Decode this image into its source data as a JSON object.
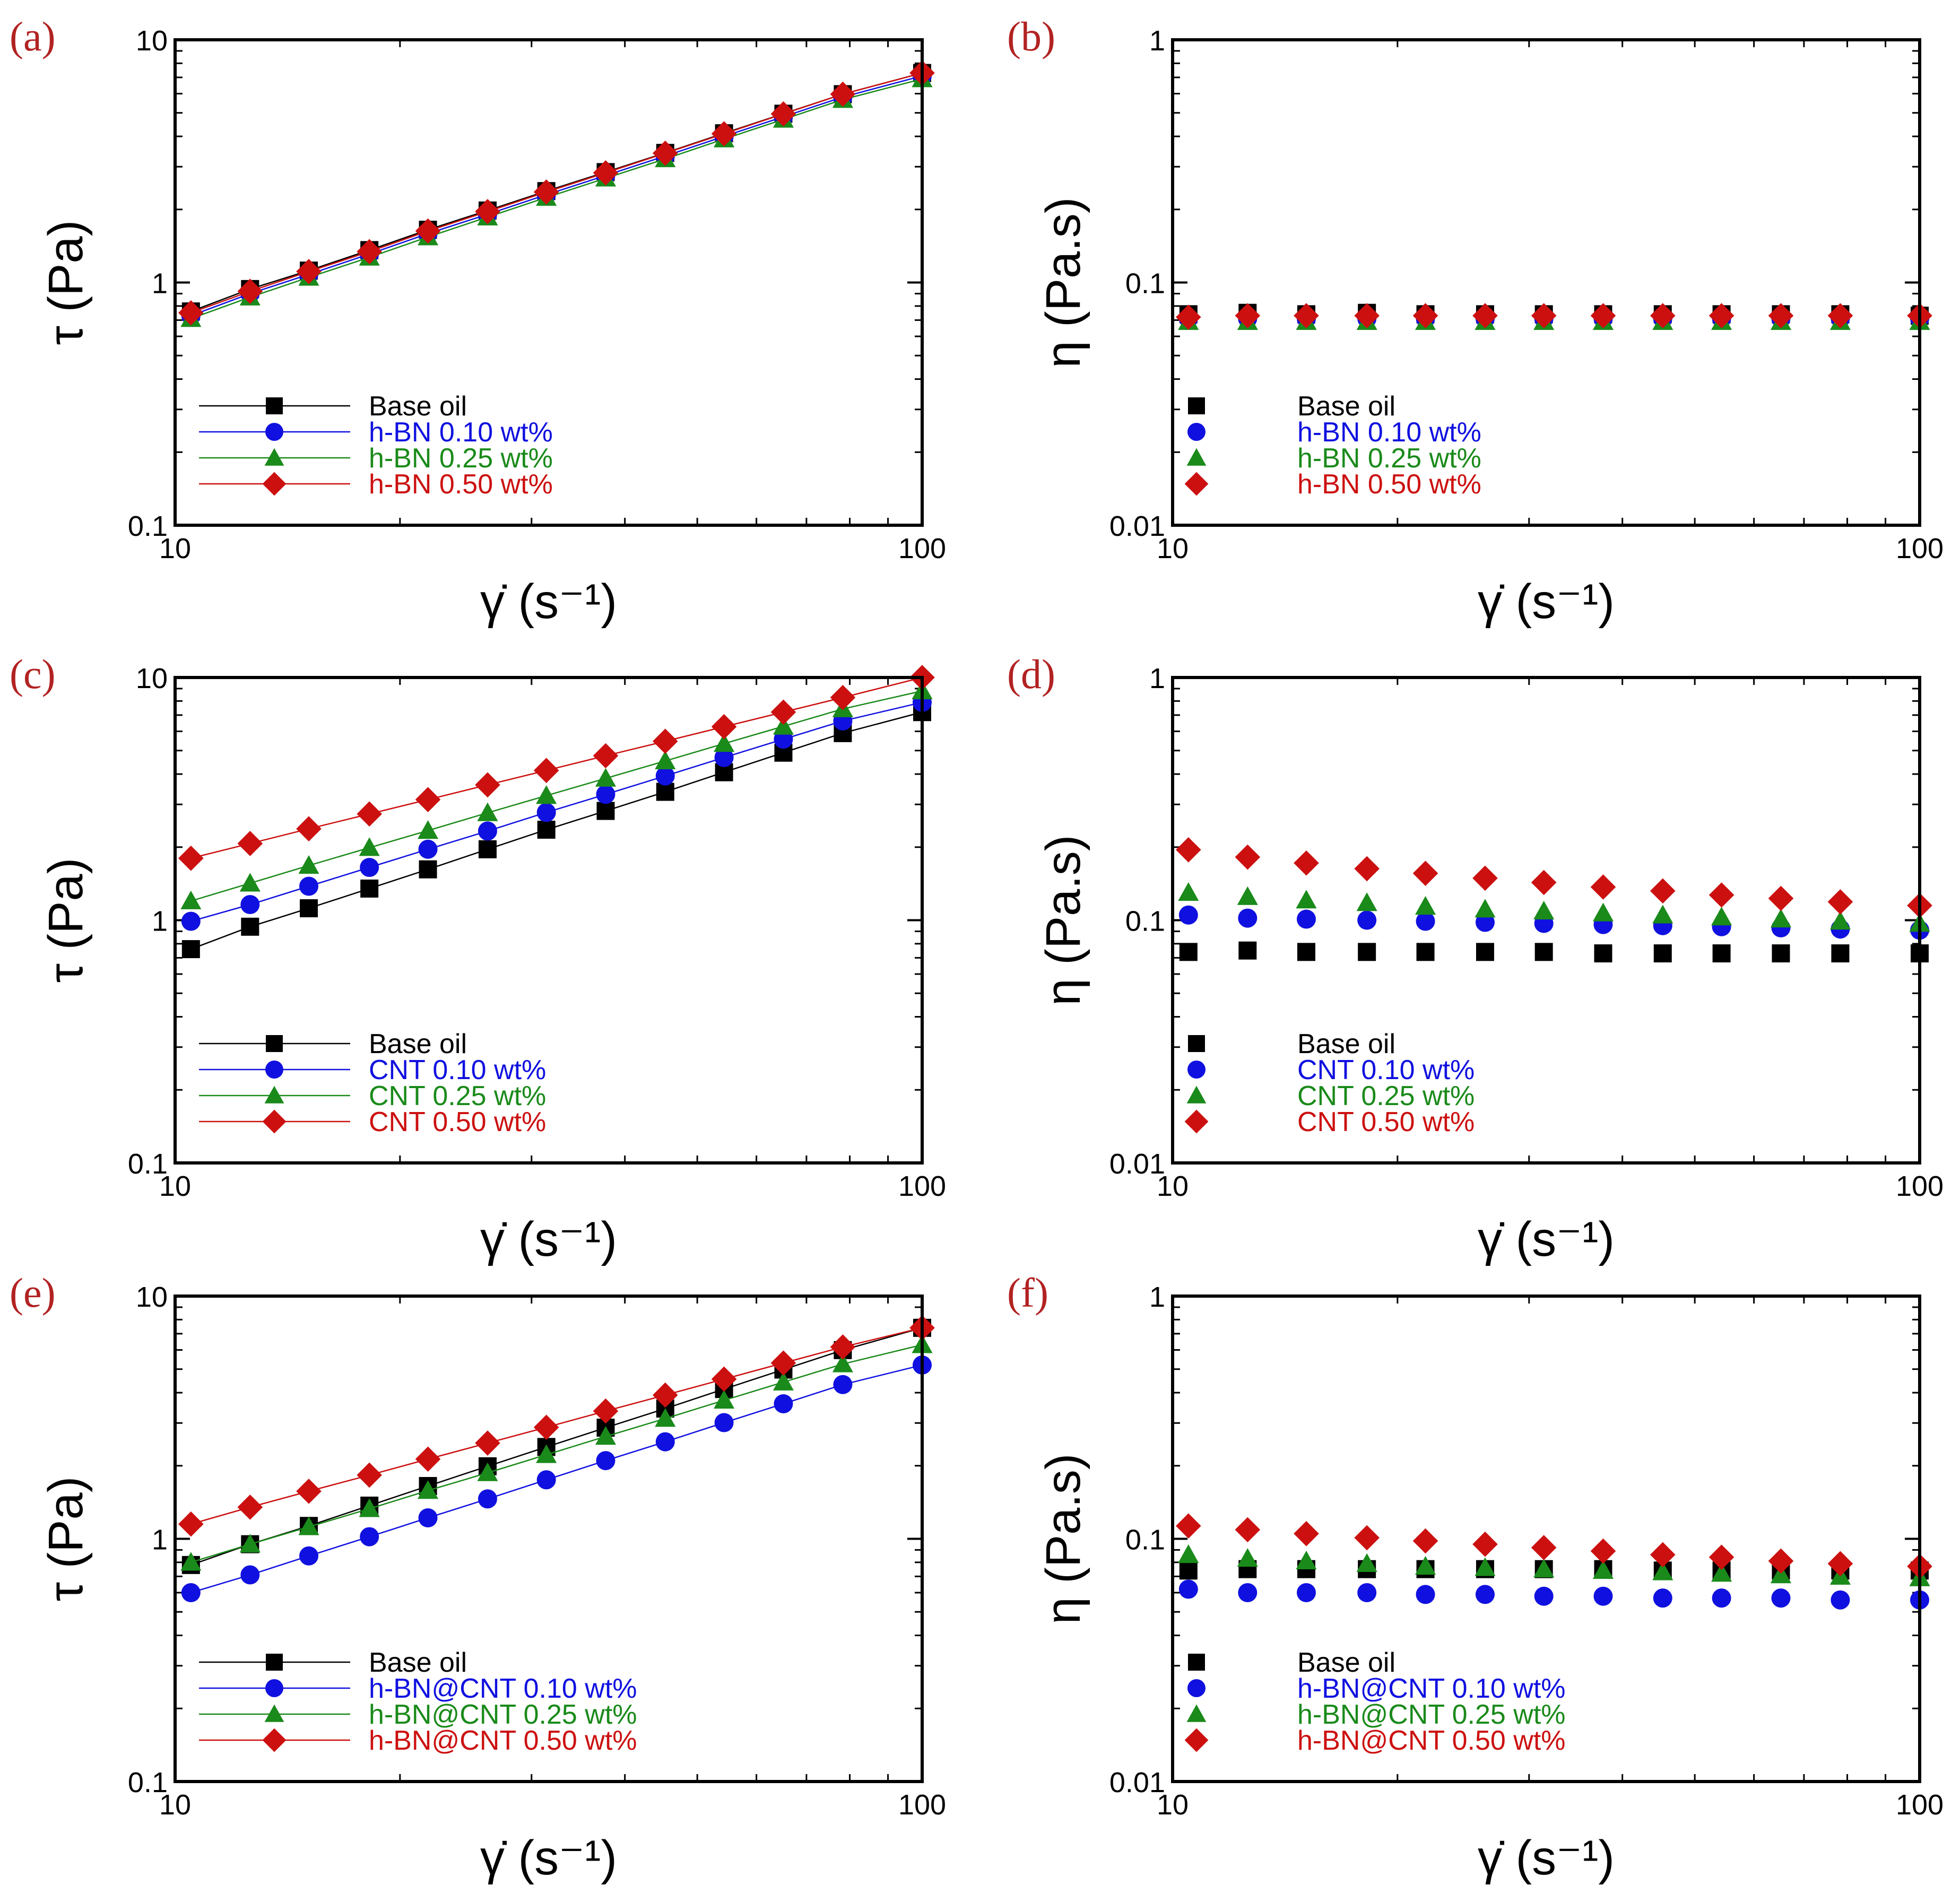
{
  "figure": {
    "background": "#ffffff",
    "panel_label_color": "#b22222"
  },
  "chart_data": [
    {
      "id": "a",
      "panel_label": "(a)",
      "type": "line",
      "xlabel": "γ̇ (s⁻¹)",
      "ylabel": "τ (Pa)",
      "xscale": "log",
      "yscale": "log",
      "xlim": [
        10,
        100
      ],
      "ylim": [
        0.1,
        10
      ],
      "xticks": [
        {
          "value": 10,
          "label": "10"
        },
        {
          "value": 100,
          "label": "100"
        }
      ],
      "yticks": [
        {
          "value": 0.1,
          "label": "0.1"
        },
        {
          "value": 1,
          "label": "1"
        },
        {
          "value": 10,
          "label": "10"
        }
      ],
      "legend_position": "bottom-left",
      "show_lines": true,
      "x": [
        10.5,
        12.6,
        15.1,
        18.2,
        21.8,
        26.2,
        31.4,
        37.7,
        45.3,
        54.3,
        65.2,
        78.3,
        100
      ],
      "series": [
        {
          "name": "Base oil",
          "color": "#000000",
          "marker": "square",
          "values": [
            0.76,
            0.94,
            1.12,
            1.36,
            1.65,
            1.98,
            2.38,
            2.85,
            3.42,
            4.12,
            4.96,
            5.97,
            7.3
          ]
        },
        {
          "name": "h-BN 0.10 wt%",
          "color": "#1010e0",
          "marker": "circle",
          "values": [
            0.73,
            0.9,
            1.08,
            1.31,
            1.59,
            1.91,
            2.3,
            2.76,
            3.32,
            4.0,
            4.82,
            5.81,
            7.1
          ]
        },
        {
          "name": "h-BN 0.25 wt%",
          "color": "#1a8a1a",
          "marker": "triangle",
          "values": [
            0.71,
            0.87,
            1.05,
            1.27,
            1.54,
            1.86,
            2.24,
            2.69,
            3.23,
            3.9,
            4.7,
            5.67,
            6.9
          ]
        },
        {
          "name": "h-BN 0.50 wt%",
          "color": "#cc1010",
          "marker": "diamond",
          "values": [
            0.75,
            0.92,
            1.11,
            1.34,
            1.63,
            1.96,
            2.36,
            2.83,
            3.41,
            4.1,
            4.95,
            5.97,
            7.3
          ]
        }
      ]
    },
    {
      "id": "b",
      "panel_label": "(b)",
      "type": "scatter",
      "xlabel": "γ̇ (s⁻¹)",
      "ylabel": "η (Pa.s)",
      "xscale": "log",
      "yscale": "log",
      "xlim": [
        10,
        100
      ],
      "ylim": [
        0.01,
        1
      ],
      "xticks": [
        {
          "value": 10,
          "label": "10"
        },
        {
          "value": 100,
          "label": "100"
        }
      ],
      "yticks": [
        {
          "value": 0.01,
          "label": "0.01"
        },
        {
          "value": 0.1,
          "label": "0.1"
        },
        {
          "value": 1,
          "label": "1"
        }
      ],
      "legend_position": "bottom-left",
      "show_lines": false,
      "x": [
        10.5,
        12.6,
        15.1,
        18.2,
        21.8,
        26.2,
        31.4,
        37.7,
        45.3,
        54.3,
        65.2,
        78.3,
        100
      ],
      "series": [
        {
          "name": "Base oil",
          "color": "#000000",
          "marker": "square",
          "values": [
            0.074,
            0.075,
            0.074,
            0.075,
            0.074,
            0.074,
            0.074,
            0.074,
            0.074,
            0.074,
            0.074,
            0.074,
            0.073
          ]
        },
        {
          "name": "h-BN 0.10 wt%",
          "color": "#1010e0",
          "marker": "circle",
          "values": [
            0.071,
            0.071,
            0.071,
            0.071,
            0.071,
            0.071,
            0.071,
            0.071,
            0.071,
            0.071,
            0.071,
            0.071,
            0.071
          ]
        },
        {
          "name": "h-BN 0.25 wt%",
          "color": "#1a8a1a",
          "marker": "triangle",
          "values": [
            0.069,
            0.069,
            0.069,
            0.069,
            0.069,
            0.069,
            0.069,
            0.069,
            0.069,
            0.069,
            0.069,
            0.069,
            0.069
          ]
        },
        {
          "name": "h-BN 0.50 wt%",
          "color": "#cc1010",
          "marker": "diamond",
          "values": [
            0.072,
            0.073,
            0.073,
            0.073,
            0.073,
            0.073,
            0.073,
            0.073,
            0.073,
            0.073,
            0.073,
            0.073,
            0.073
          ]
        }
      ]
    },
    {
      "id": "c",
      "panel_label": "(c)",
      "type": "line",
      "xlabel": "γ̇ (s⁻¹)",
      "ylabel": "τ (Pa)",
      "xscale": "log",
      "yscale": "log",
      "xlim": [
        10,
        100
      ],
      "ylim": [
        0.1,
        10
      ],
      "xticks": [
        {
          "value": 10,
          "label": "10"
        },
        {
          "value": 100,
          "label": "100"
        }
      ],
      "yticks": [
        {
          "value": 0.1,
          "label": "0.1"
        },
        {
          "value": 1,
          "label": "1"
        },
        {
          "value": 10,
          "label": "10"
        }
      ],
      "legend_position": "bottom-left",
      "show_lines": true,
      "x": [
        10.5,
        12.6,
        15.1,
        18.2,
        21.8,
        26.2,
        31.4,
        37.7,
        45.3,
        54.3,
        65.2,
        78.3,
        100
      ],
      "series": [
        {
          "name": "Base oil",
          "color": "#000000",
          "marker": "square",
          "values": [
            0.76,
            0.94,
            1.12,
            1.35,
            1.62,
            1.96,
            2.36,
            2.82,
            3.38,
            4.07,
            4.9,
            5.9,
            7.2
          ]
        },
        {
          "name": "CNT 0.10 wt%",
          "color": "#1010e0",
          "marker": "circle",
          "values": [
            0.99,
            1.16,
            1.38,
            1.65,
            1.96,
            2.33,
            2.78,
            3.3,
            3.93,
            4.68,
            5.57,
            6.62,
            7.9
          ]
        },
        {
          "name": "CNT 0.25 wt%",
          "color": "#1a8a1a",
          "marker": "triangle",
          "values": [
            1.2,
            1.42,
            1.68,
            1.99,
            2.34,
            2.77,
            3.26,
            3.84,
            4.53,
            5.34,
            6.29,
            7.42,
            8.8
          ]
        },
        {
          "name": "CNT 0.50 wt%",
          "color": "#cc1010",
          "marker": "diamond",
          "values": [
            1.8,
            2.07,
            2.38,
            2.74,
            3.14,
            3.61,
            4.14,
            4.76,
            5.46,
            6.27,
            7.2,
            8.27,
            10.0
          ]
        }
      ]
    },
    {
      "id": "d",
      "panel_label": "(d)",
      "type": "scatter",
      "xlabel": "γ̇ (s⁻¹)",
      "ylabel": "η (Pa.s)",
      "xscale": "log",
      "yscale": "log",
      "xlim": [
        10,
        100
      ],
      "ylim": [
        0.01,
        1
      ],
      "xticks": [
        {
          "value": 10,
          "label": "10"
        },
        {
          "value": 100,
          "label": "100"
        }
      ],
      "yticks": [
        {
          "value": 0.01,
          "label": "0.01"
        },
        {
          "value": 0.1,
          "label": "0.1"
        },
        {
          "value": 1,
          "label": "1"
        }
      ],
      "legend_position": "bottom-left",
      "show_lines": false,
      "x": [
        10.5,
        12.6,
        15.1,
        18.2,
        21.8,
        26.2,
        31.4,
        37.7,
        45.3,
        54.3,
        65.2,
        78.3,
        100
      ],
      "series": [
        {
          "name": "Base oil",
          "color": "#000000",
          "marker": "square",
          "values": [
            0.074,
            0.075,
            0.074,
            0.074,
            0.074,
            0.074,
            0.074,
            0.073,
            0.073,
            0.073,
            0.073,
            0.073,
            0.073
          ]
        },
        {
          "name": "CNT 0.10 wt%",
          "color": "#1010e0",
          "marker": "circle",
          "values": [
            0.105,
            0.102,
            0.101,
            0.1,
            0.099,
            0.098,
            0.097,
            0.096,
            0.095,
            0.094,
            0.093,
            0.092,
            0.091
          ]
        },
        {
          "name": "CNT 0.25 wt%",
          "color": "#1a8a1a",
          "marker": "triangle",
          "values": [
            0.13,
            0.125,
            0.121,
            0.118,
            0.114,
            0.111,
            0.109,
            0.107,
            0.105,
            0.103,
            0.101,
            0.099,
            0.097
          ]
        },
        {
          "name": "CNT 0.50 wt%",
          "color": "#cc1010",
          "marker": "diamond",
          "values": [
            0.195,
            0.182,
            0.172,
            0.163,
            0.156,
            0.149,
            0.143,
            0.137,
            0.132,
            0.127,
            0.123,
            0.119,
            0.115
          ]
        }
      ]
    },
    {
      "id": "e",
      "panel_label": "(e)",
      "type": "line",
      "xlabel": "γ̇ (s⁻¹)",
      "ylabel": "τ (Pa)",
      "xscale": "log",
      "yscale": "log",
      "xlim": [
        10,
        100
      ],
      "ylim": [
        0.1,
        10
      ],
      "xticks": [
        {
          "value": 10,
          "label": "10"
        },
        {
          "value": 100,
          "label": "100"
        }
      ],
      "yticks": [
        {
          "value": 0.1,
          "label": "0.1"
        },
        {
          "value": 1,
          "label": "1"
        },
        {
          "value": 10,
          "label": "10"
        }
      ],
      "legend_position": "bottom-left",
      "show_lines": true,
      "x": [
        10.5,
        12.6,
        15.1,
        18.2,
        21.8,
        26.2,
        31.4,
        37.7,
        45.3,
        54.3,
        65.2,
        78.3,
        100
      ],
      "series": [
        {
          "name": "Base oil",
          "color": "#000000",
          "marker": "square",
          "values": [
            0.78,
            0.95,
            1.13,
            1.37,
            1.65,
            1.99,
            2.39,
            2.87,
            3.44,
            4.14,
            4.98,
            5.99,
            7.4
          ]
        },
        {
          "name": "h-BN@CNT 0.10 wt%",
          "color": "#1010e0",
          "marker": "circle",
          "values": [
            0.6,
            0.71,
            0.85,
            1.02,
            1.22,
            1.46,
            1.75,
            2.1,
            2.51,
            3.01,
            3.6,
            4.32,
            5.2
          ]
        },
        {
          "name": "h-BN@CNT 0.25 wt%",
          "color": "#1a8a1a",
          "marker": "triangle",
          "values": [
            0.8,
            0.95,
            1.12,
            1.33,
            1.58,
            1.87,
            2.22,
            2.64,
            3.13,
            3.72,
            4.42,
            5.25,
            6.3
          ]
        },
        {
          "name": "h-BN@CNT 0.50 wt%",
          "color": "#cc1010",
          "marker": "diamond",
          "values": [
            1.15,
            1.35,
            1.57,
            1.83,
            2.13,
            2.48,
            2.88,
            3.36,
            3.91,
            4.55,
            5.3,
            6.17,
            7.4
          ]
        }
      ]
    },
    {
      "id": "f",
      "panel_label": "(f)",
      "type": "scatter",
      "xlabel": "γ̇ (s⁻¹)",
      "ylabel": "η (Pa.s)",
      "xscale": "log",
      "yscale": "log",
      "xlim": [
        10,
        100
      ],
      "ylim": [
        0.01,
        1
      ],
      "xticks": [
        {
          "value": 10,
          "label": "10"
        },
        {
          "value": 100,
          "label": "100"
        }
      ],
      "yticks": [
        {
          "value": 0.01,
          "label": "0.01"
        },
        {
          "value": 0.1,
          "label": "0.1"
        },
        {
          "value": 1,
          "label": "1"
        }
      ],
      "legend_position": "bottom-left",
      "show_lines": false,
      "x": [
        10.5,
        12.6,
        15.1,
        18.2,
        21.8,
        26.2,
        31.4,
        37.7,
        45.3,
        54.3,
        65.2,
        78.3,
        100
      ],
      "series": [
        {
          "name": "Base oil",
          "color": "#000000",
          "marker": "square",
          "values": [
            0.074,
            0.075,
            0.075,
            0.075,
            0.075,
            0.075,
            0.075,
            0.075,
            0.074,
            0.074,
            0.074,
            0.074,
            0.074
          ]
        },
        {
          "name": "h-BN@CNT 0.10 wt%",
          "color": "#1010e0",
          "marker": "circle",
          "values": [
            0.062,
            0.06,
            0.06,
            0.06,
            0.059,
            0.059,
            0.058,
            0.058,
            0.057,
            0.057,
            0.057,
            0.056,
            0.056
          ]
        },
        {
          "name": "h-BN@CNT 0.25 wt%",
          "color": "#1a8a1a",
          "marker": "triangle",
          "values": [
            0.086,
            0.083,
            0.081,
            0.079,
            0.077,
            0.076,
            0.075,
            0.074,
            0.073,
            0.072,
            0.071,
            0.07,
            0.069
          ]
        },
        {
          "name": "h-BN@CNT 0.50 wt%",
          "color": "#cc1010",
          "marker": "diamond",
          "values": [
            0.113,
            0.109,
            0.105,
            0.101,
            0.098,
            0.095,
            0.092,
            0.089,
            0.086,
            0.084,
            0.081,
            0.079,
            0.077
          ]
        }
      ]
    }
  ]
}
